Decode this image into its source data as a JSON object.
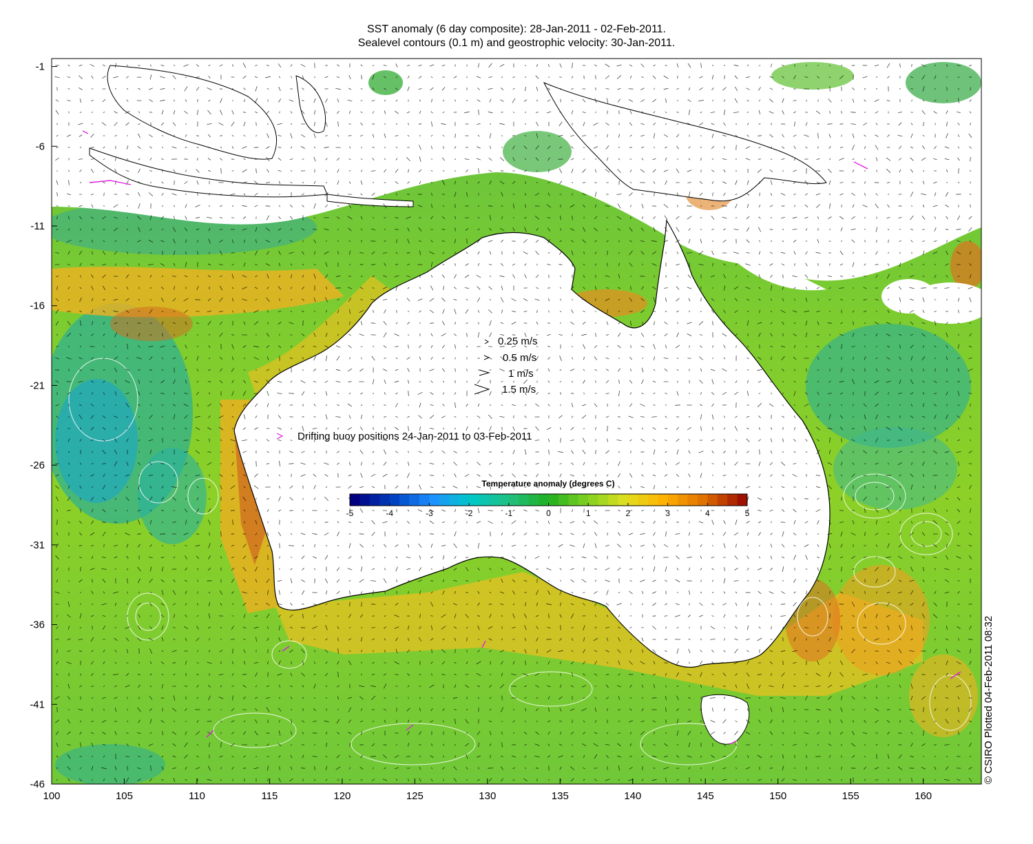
{
  "title_line1": "SST anomaly (6 day composite): 28-Jan-2011 - 02-Feb-2011.",
  "title_line2": "Sealevel contours (0.1 m) and geostrophic velocity: 30-Jan-2011.",
  "axes": {
    "x_ticks": [
      "100",
      "105",
      "110",
      "115",
      "120",
      "125",
      "130",
      "135",
      "140",
      "145",
      "150",
      "155",
      "160"
    ],
    "y_ticks": [
      "-1",
      "-6",
      "-11",
      "-16",
      "-21",
      "-26",
      "-31",
      "-36",
      "-41",
      "-46"
    ],
    "lon_range": [
      100,
      164
    ],
    "lat_range": [
      -46,
      -0.5
    ]
  },
  "velocity_legend": [
    {
      "label": "0.25 m/s",
      "speed": 0.25
    },
    {
      "label": "0.5 m/s",
      "speed": 0.5
    },
    {
      "label": "1 m/s",
      "speed": 1
    },
    {
      "label": "1.5 m/s",
      "speed": 1.5
    }
  ],
  "buoy_legend": "Drifting buoy positions 24-Jan-2011 to 03-Feb-2011",
  "buoy_color": "#e020e0",
  "colorbar": {
    "title": "Temperature anomaly (degrees C)",
    "ticks": [
      "-5",
      "-4",
      "-3",
      "-2",
      "-1",
      "0",
      "1",
      "2",
      "3",
      "4",
      "5"
    ],
    "range": [
      -5,
      5
    ],
    "colors": [
      "#000080",
      "#0040c0",
      "#1e90ff",
      "#00c8c8",
      "#20c080",
      "#20b020",
      "#80d020",
      "#e0e020",
      "#ffb000",
      "#e07000",
      "#a01000"
    ]
  },
  "credit": "© CSIRO Plotted 04-Feb-2011 08:32"
}
